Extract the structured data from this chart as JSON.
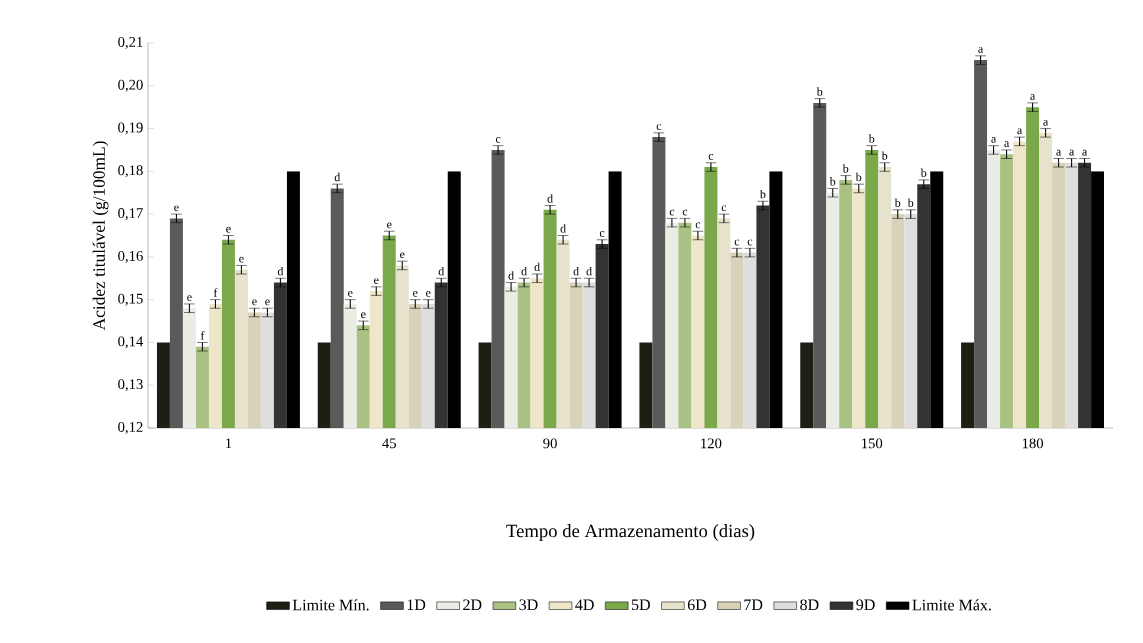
{
  "chart_data": {
    "type": "bar",
    "xlabel": "Tempo de Armazenamento (dias)",
    "ylabel": "Acidez titulável (g/100mL)",
    "categories": [
      "1",
      "45",
      "90",
      "120",
      "150",
      "180"
    ],
    "ylim": [
      0.12,
      0.21
    ],
    "yticks": [
      {
        "value": 0.12,
        "label": "0,12"
      },
      {
        "value": 0.13,
        "label": "0,13"
      },
      {
        "value": 0.14,
        "label": "0,14"
      },
      {
        "value": 0.15,
        "label": "0,15"
      },
      {
        "value": 0.16,
        "label": "0,16"
      },
      {
        "value": 0.17,
        "label": "0,17"
      },
      {
        "value": 0.18,
        "label": "0,18"
      },
      {
        "value": 0.19,
        "label": "0,19"
      },
      {
        "value": 0.2,
        "label": "0,20"
      },
      {
        "value": 0.21,
        "label": "0,21"
      }
    ],
    "legend": "bottom",
    "grid": false,
    "series": [
      {
        "name": "Limite Mín.",
        "color": "#1e1e14",
        "values": [
          0.14,
          0.14,
          0.14,
          0.14,
          0.14,
          0.14
        ]
      },
      {
        "name": "1D",
        "color": "#5a5a5a",
        "values": [
          0.169,
          0.176,
          0.185,
          0.188,
          0.196,
          0.206
        ],
        "errors": [
          0.001,
          0.001,
          0.001,
          0.001,
          0.001,
          0.001
        ],
        "value_labels": [
          "e",
          "d",
          "c",
          "c",
          "b",
          "a"
        ]
      },
      {
        "name": "2D",
        "color": "#ecece6",
        "values": [
          0.148,
          0.149,
          0.153,
          0.168,
          0.175,
          0.185
        ],
        "errors": [
          0.001,
          0.001,
          0.001,
          0.001,
          0.001,
          0.001
        ],
        "value_labels": [
          "e",
          "e",
          "d",
          "c",
          "b",
          "a"
        ]
      },
      {
        "name": "3D",
        "color": "#a9c183",
        "values": [
          0.139,
          0.144,
          0.154,
          0.168,
          0.178,
          0.184
        ],
        "errors": [
          0.001,
          0.001,
          0.001,
          0.001,
          0.001,
          0.001
        ],
        "value_labels": [
          "f",
          "e",
          "d",
          "c",
          "b",
          "a"
        ]
      },
      {
        "name": "4D",
        "color": "#eee6c8",
        "values": [
          0.149,
          0.152,
          0.155,
          0.165,
          0.176,
          0.187
        ],
        "errors": [
          0.001,
          0.001,
          0.001,
          0.001,
          0.001,
          0.001
        ],
        "value_labels": [
          "f",
          "e",
          "d",
          "c",
          "b",
          "a"
        ]
      },
      {
        "name": "5D",
        "color": "#7aa84a",
        "values": [
          0.164,
          0.165,
          0.171,
          0.181,
          0.185,
          0.195
        ],
        "errors": [
          0.001,
          0.001,
          0.001,
          0.001,
          0.001,
          0.001
        ],
        "value_labels": [
          "e",
          "e",
          "d",
          "c",
          "b",
          "a"
        ]
      },
      {
        "name": "6D",
        "color": "#e6e2cc",
        "values": [
          0.157,
          0.158,
          0.164,
          0.169,
          0.181,
          0.189
        ],
        "errors": [
          0.001,
          0.001,
          0.001,
          0.001,
          0.001,
          0.001
        ],
        "value_labels": [
          "e",
          "e",
          "d",
          "c",
          "b",
          "a"
        ]
      },
      {
        "name": "7D",
        "color": "#d8d2b8",
        "values": [
          0.147,
          0.149,
          0.154,
          0.161,
          0.17,
          0.182
        ],
        "errors": [
          0.001,
          0.001,
          0.001,
          0.001,
          0.001,
          0.001
        ],
        "value_labels": [
          "e",
          "e",
          "d",
          "c",
          "b",
          "a"
        ]
      },
      {
        "name": "8D",
        "color": "#dedede",
        "values": [
          0.147,
          0.149,
          0.154,
          0.161,
          0.17,
          0.182
        ],
        "errors": [
          0.001,
          0.001,
          0.001,
          0.001,
          0.001,
          0.001
        ],
        "value_labels": [
          "e",
          "e",
          "d",
          "c",
          "b",
          "a"
        ]
      },
      {
        "name": "9D",
        "color": "#333333",
        "values": [
          0.154,
          0.154,
          0.163,
          0.172,
          0.177,
          0.182
        ],
        "errors": [
          0.001,
          0.001,
          0.001,
          0.001,
          0.001,
          0.001
        ],
        "value_labels": [
          "d",
          "d",
          "c",
          "b",
          "b",
          "a"
        ]
      },
      {
        "name": "Limite Máx.",
        "color": "#000000",
        "values": [
          0.18,
          0.18,
          0.18,
          0.18,
          0.18,
          0.18
        ]
      }
    ]
  }
}
